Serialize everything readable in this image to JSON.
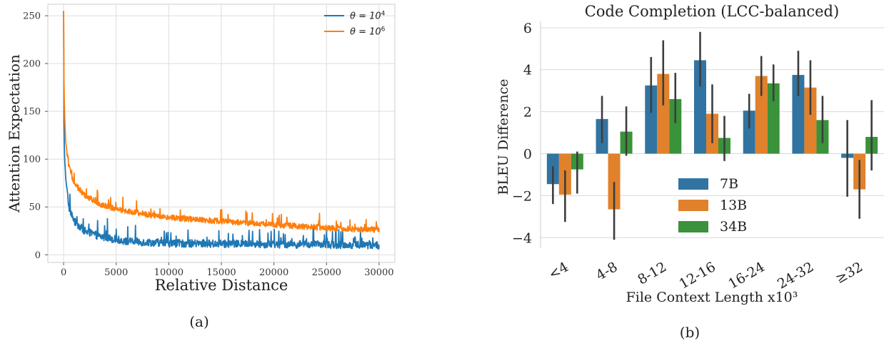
{
  "chart_data": [
    {
      "type": "line",
      "panel_label": "(a)",
      "xlabel": "Relative Distance",
      "ylabel": "Attention Expectation",
      "xlim": [
        -1500,
        31500
      ],
      "ylim": [
        -8,
        262
      ],
      "xticks": [
        0,
        5000,
        10000,
        15000,
        20000,
        25000,
        30000
      ],
      "yticks": [
        0,
        50,
        100,
        150,
        200,
        250
      ],
      "grid": true,
      "legend": "top-right",
      "series": [
        {
          "name": "θ = 10⁴",
          "legend_base": "θ = 10",
          "legend_exp": "4",
          "color": "#1f77b4",
          "peak": 255,
          "tail_level": 11,
          "tail_noise": 8,
          "decay": [
            [
              0,
              255
            ],
            [
              25,
              145
            ],
            [
              80,
              105
            ],
            [
              200,
              80
            ],
            [
              500,
              50
            ],
            [
              1000,
              35
            ],
            [
              2000,
              25
            ],
            [
              3500,
              19
            ],
            [
              6000,
              14
            ],
            [
              10000,
              12
            ],
            [
              30000,
              10
            ]
          ]
        },
        {
          "name": "θ = 10⁶",
          "legend_base": "θ = 10",
          "legend_exp": "6",
          "color": "#ff7f0e",
          "peak": 255,
          "tail_level": 28,
          "tail_noise": 6,
          "decay": [
            [
              0,
              255
            ],
            [
              25,
              190
            ],
            [
              80,
              150
            ],
            [
              200,
              118
            ],
            [
              500,
              92
            ],
            [
              1000,
              75
            ],
            [
              2000,
              62
            ],
            [
              3500,
              53
            ],
            [
              5000,
              48
            ],
            [
              8000,
              42
            ],
            [
              12000,
              37
            ],
            [
              18000,
              33
            ],
            [
              25000,
              28
            ],
            [
              30000,
              26
            ]
          ]
        }
      ]
    },
    {
      "type": "bar",
      "panel_label": "(b)",
      "title": "Code Completion (LCC-balanced)",
      "xlabel": "File Context Length x10³",
      "ylabel": "BLEU Difference",
      "ylim": [
        -4.5,
        6.3
      ],
      "yticks": [
        -4,
        -2,
        0,
        2,
        4,
        6
      ],
      "yticklabels": [
        "−4",
        "−2",
        "0",
        "2",
        "4",
        "6"
      ],
      "grid": true,
      "legend": "lower-center",
      "categories": [
        "<4",
        "4-8",
        "8-12",
        "12-16",
        "16-24",
        "24-32",
        "≥32"
      ],
      "series": [
        {
          "name": "7B",
          "color": "#3274a1",
          "values": [
            -1.45,
            1.65,
            3.25,
            4.45,
            2.05,
            3.75,
            -0.2
          ],
          "err_low": [
            -2.4,
            0.5,
            1.95,
            3.2,
            1.2,
            2.75,
            -2.05
          ],
          "err_high": [
            -0.6,
            2.75,
            4.6,
            5.8,
            2.85,
            4.9,
            1.6
          ]
        },
        {
          "name": "13B",
          "color": "#e1812c",
          "values": [
            -1.95,
            -2.65,
            3.8,
            1.9,
            3.7,
            3.15,
            -1.7
          ],
          "err_low": [
            -3.25,
            -4.1,
            2.3,
            0.5,
            2.75,
            1.85,
            -3.1
          ],
          "err_high": [
            -0.8,
            -1.35,
            5.4,
            3.3,
            4.65,
            4.45,
            -0.3
          ]
        },
        {
          "name": "34B",
          "color": "#3a923a",
          "values": [
            -0.75,
            1.05,
            2.6,
            0.75,
            3.35,
            1.6,
            0.8
          ],
          "err_low": [
            -1.9,
            -0.1,
            1.45,
            -0.35,
            2.5,
            0.5,
            -0.8
          ],
          "err_high": [
            0.1,
            2.25,
            3.85,
            1.8,
            4.25,
            2.75,
            2.55
          ]
        }
      ]
    }
  ]
}
